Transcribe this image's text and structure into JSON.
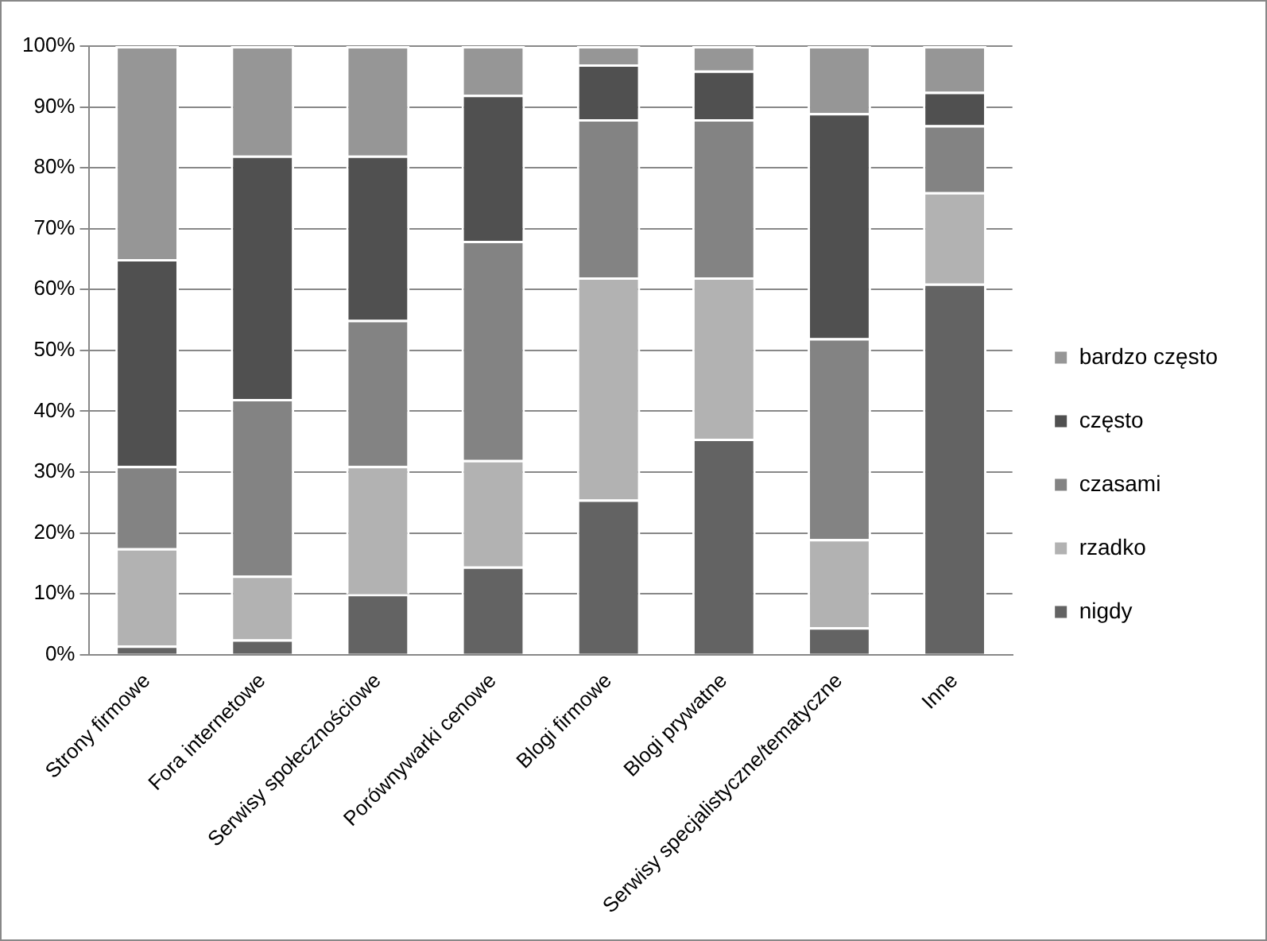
{
  "chart_data": {
    "type": "bar",
    "stacked": true,
    "categories": [
      "Strony firmowe",
      "Fora internetowe",
      "Serwisy społecznościowe",
      "Porównywarki cenowe",
      "Blogi firmowe",
      "Blogi prywatne",
      "Serwisy specjalistyczne/tematyczne",
      "Inne"
    ],
    "series": [
      {
        "name": "nigdy",
        "color": "#636363",
        "values": [
          1.5,
          2.5,
          10,
          14.5,
          25.5,
          35.5,
          4.5,
          61
        ]
      },
      {
        "name": "rzadko",
        "color": "#b2b2b2",
        "values": [
          16,
          10.5,
          21,
          17.5,
          36.5,
          26.5,
          14.5,
          15
        ]
      },
      {
        "name": "czasami",
        "color": "#838383",
        "values": [
          13.5,
          29,
          24,
          36,
          26,
          26,
          33,
          11
        ]
      },
      {
        "name": "często",
        "color": "#505050",
        "values": [
          34,
          40,
          27,
          24,
          9,
          8,
          37,
          5.5
        ]
      },
      {
        "name": "bardzo często",
        "color": "#969696",
        "values": [
          35,
          18,
          18,
          8,
          3,
          4,
          11,
          7.5
        ]
      }
    ],
    "ylim": [
      0,
      100
    ],
    "yticks": [
      {
        "value": 0,
        "label": "0%"
      },
      {
        "value": 10,
        "label": "10%"
      },
      {
        "value": 20,
        "label": "20%"
      },
      {
        "value": 30,
        "label": "30%"
      },
      {
        "value": 40,
        "label": "40%"
      },
      {
        "value": 50,
        "label": "50%"
      },
      {
        "value": 60,
        "label": "60%"
      },
      {
        "value": 70,
        "label": "70%"
      },
      {
        "value": 80,
        "label": "80%"
      },
      {
        "value": 90,
        "label": "90%"
      },
      {
        "value": 100,
        "label": "100%"
      }
    ],
    "grid": "y",
    "legend": "right"
  }
}
